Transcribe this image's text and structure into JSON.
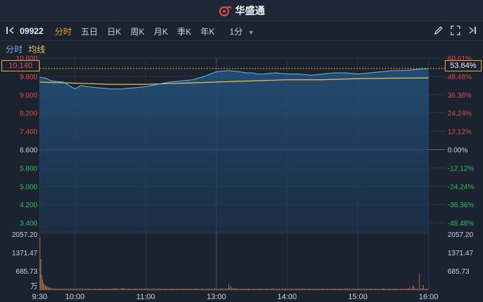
{
  "app": {
    "brand": "华盛通"
  },
  "toolbar": {
    "code": "09922",
    "tabs": [
      {
        "label": "分时",
        "active": true
      },
      {
        "label": "五日",
        "active": false
      },
      {
        "label": "日K",
        "active": false
      },
      {
        "label": "周K",
        "active": false
      },
      {
        "label": "月K",
        "active": false
      },
      {
        "label": "季K",
        "active": false
      },
      {
        "label": "年K",
        "active": false
      }
    ],
    "period": "1分",
    "icons": [
      "pencil-icon",
      "fullscreen-icon",
      "panel-toggle-icon"
    ]
  },
  "legend": {
    "timeshare": "分时",
    "avg": "均线"
  },
  "price_box": "10.140",
  "pct_box": "53.64%",
  "colors": {
    "up": "#e24a4a",
    "down": "#2fbf5a",
    "accent": "#f5a623",
    "line": "#6fb3e6",
    "avg": "#e8c14a",
    "fill": "#1f3d5c"
  },
  "chart_data": {
    "type": "line",
    "price_axis": [
      "10.600",
      "9.800",
      "9.000",
      "8.200",
      "7.400",
      "6.600",
      "5.800",
      "5.000",
      "4.200",
      "3.400"
    ],
    "pct_axis": [
      "60.61%",
      "48.48%",
      "36.36%",
      "24.24%",
      "12.12%",
      "0.00%",
      "-12.12%",
      "-24.24%",
      "-36.36%",
      "-48.48%"
    ],
    "volume_axis": [
      "2057.20",
      "1371.47",
      "685.73",
      "万"
    ],
    "time_axis": [
      "9:30",
      "10:00",
      "11:00",
      "13:00",
      "14:00",
      "15:00",
      "16:00"
    ],
    "prev_close": 6.6,
    "ylim": [
      3.0,
      10.6
    ],
    "price_x": [
      0,
      5,
      10,
      20,
      30,
      35,
      40,
      50,
      60,
      70,
      80,
      90,
      100,
      110,
      120,
      130,
      140,
      150,
      160,
      170,
      175,
      180,
      185,
      190,
      200,
      210,
      220,
      230,
      240,
      250,
      260,
      270,
      280,
      290,
      300,
      310,
      320,
      330
    ],
    "price": [
      9.75,
      9.72,
      9.6,
      9.55,
      9.25,
      9.4,
      9.35,
      9.3,
      9.25,
      9.25,
      9.3,
      9.35,
      9.45,
      9.55,
      9.6,
      9.65,
      9.8,
      10.0,
      10.05,
      10.0,
      9.95,
      9.95,
      9.9,
      9.9,
      9.95,
      9.9,
      9.9,
      9.85,
      9.9,
      9.95,
      9.95,
      9.9,
      9.95,
      10.0,
      10.05,
      10.05,
      10.1,
      10.14
    ],
    "avg_x": [
      0,
      30,
      60,
      90,
      120,
      150,
      180,
      210,
      240,
      270,
      300,
      330
    ],
    "avg": [
      9.55,
      9.5,
      9.45,
      9.45,
      9.5,
      9.55,
      9.6,
      9.65,
      9.65,
      9.7,
      9.72,
      9.73
    ],
    "volume": [
      2057,
      1200,
      600,
      400,
      250,
      200,
      180,
      150,
      120,
      100,
      90,
      80,
      70,
      60,
      60,
      55,
      50,
      60,
      50,
      45,
      50,
      60,
      45,
      40,
      50,
      45,
      40,
      45,
      50,
      40,
      55,
      45,
      40,
      50,
      45,
      60,
      50,
      40,
      45,
      50,
      55,
      45,
      40,
      50,
      55,
      60,
      50,
      45,
      40,
      50,
      45,
      55,
      60,
      50,
      45,
      40,
      50,
      45,
      55,
      50,
      45,
      40,
      50,
      45,
      55,
      60,
      50,
      45,
      40,
      50,
      45,
      55,
      50,
      45,
      40,
      50,
      45,
      55,
      60,
      50,
      70,
      60,
      50,
      45,
      40,
      50,
      55,
      60,
      65,
      70,
      50,
      45,
      40,
      55,
      60,
      50,
      45,
      40,
      50,
      45,
      55,
      60,
      50,
      45,
      40,
      50,
      45,
      55,
      50,
      45,
      40,
      50,
      45,
      55,
      60,
      50,
      45,
      40,
      50,
      45,
      55,
      50,
      45,
      40,
      50,
      45,
      55,
      60,
      50,
      45,
      40,
      50,
      45,
      55,
      50,
      45,
      40,
      50,
      45,
      55,
      60,
      50,
      45,
      40,
      50,
      45,
      55,
      50,
      45,
      40,
      50,
      45,
      55,
      60,
      50,
      45,
      40,
      50,
      45,
      55,
      50,
      45,
      40,
      50,
      45,
      55,
      60,
      50,
      45,
      40,
      50,
      45,
      55,
      50,
      45,
      40,
      50,
      45,
      55,
      60,
      50,
      45,
      40,
      50,
      45,
      55,
      50,
      45,
      40,
      50,
      45,
      55,
      60,
      50,
      45,
      40,
      50,
      45,
      55,
      50,
      220,
      90,
      150,
      60,
      50,
      70,
      45,
      55,
      60,
      50,
      45,
      40,
      50,
      45,
      55,
      50,
      45,
      40,
      50,
      45,
      55,
      60,
      50,
      45,
      40,
      50,
      45,
      55,
      50,
      45,
      40,
      50,
      45,
      55,
      60,
      50,
      45,
      40,
      50,
      45,
      55,
      50,
      45,
      40,
      50,
      45,
      55,
      60,
      50,
      45,
      40,
      50,
      45,
      55,
      50,
      45,
      40,
      50,
      45,
      55,
      60,
      50,
      45,
      40,
      50,
      45,
      55,
      50,
      45,
      40,
      50,
      45,
      55,
      60,
      50,
      45,
      40,
      50,
      45,
      55,
      50,
      45,
      40,
      50,
      45,
      55,
      60,
      50,
      45,
      40,
      50,
      45,
      55,
      50,
      45,
      40,
      50,
      45,
      55,
      60,
      50,
      45,
      40,
      50,
      45,
      55,
      50,
      45,
      40,
      50,
      45,
      55,
      60,
      50,
      45,
      40,
      50,
      45,
      55,
      50,
      45,
      40,
      50,
      45,
      55,
      60,
      50,
      45,
      40,
      50,
      45,
      55,
      50,
      45,
      40,
      50,
      45,
      55,
      60,
      50,
      45,
      40,
      50,
      45,
      55,
      50,
      45,
      40,
      50,
      45,
      55,
      60,
      50,
      45,
      40,
      50,
      45,
      55,
      50,
      45,
      40,
      50,
      45,
      55,
      60,
      50,
      45,
      40,
      50,
      45,
      55,
      50,
      45,
      40,
      50,
      45,
      55,
      60,
      50,
      45,
      40,
      50,
      45,
      55,
      50,
      45,
      40,
      50,
      45,
      55,
      60,
      50,
      120,
      45,
      40,
      180,
      150,
      45,
      55,
      50,
      45,
      40,
      650,
      45,
      55,
      60,
      200,
      45,
      40,
      50,
      45,
      55
    ],
    "volume_max": 2200
  }
}
